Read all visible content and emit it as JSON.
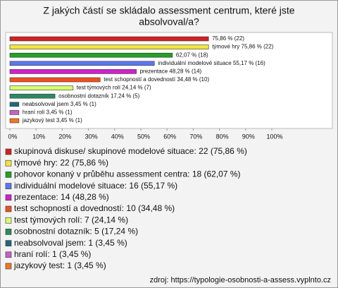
{
  "chart_data": {
    "type": "bar",
    "orientation": "horizontal",
    "title": [
      "Z jakých částí se skládalo assessment centrum, které jste",
      "absolvoval/a?"
    ],
    "values": [
      75.86,
      75.86,
      62.07,
      55.17,
      48.28,
      34.48,
      24.14,
      17.24,
      3.45,
      3.45,
      3.45
    ],
    "value_labels": [
      "75,86 % (22)",
      "týmové hry 75,86 % (22)",
      "62,07 % (18)",
      "individuální modelové situace 55,17 % (16)",
      "prezentace 48,28 % (14)",
      "test schopností a dovedností 34,48 % (10)",
      "test týmových rolí 24,14 % (7)",
      "osobnostní dotazník 17,24 % (5)",
      "neabsolvoval jsem 3,45 % (1)",
      "hraní rolí 3,45 % (1)",
      "jazykový test 3,45 % (1)"
    ],
    "colors": [
      "#d42020",
      "#f2e640",
      "#22a022",
      "#5a78f0",
      "#d020d0",
      "#f05020",
      "#d8ff70",
      "#2a8a60",
      "#206878",
      "#c860c8",
      "#f07820"
    ],
    "legend_labels": [
      "skupinová diskuse/ skupinové modelové situace: 22 (75,86 %)",
      "týmové hry: 22 (75,86 %)",
      "pohovor konaný v průběhu assessment centra: 18 (62,07 %)",
      "individuální modelové situace: 16 (55,17 %)",
      "prezentace: 14 (48,28 %)",
      "test schopností a dovedností: 10 (34,48 %)",
      "test týmových rolí: 7 (24,14 %)",
      "osobnostní dotazník: 5 (17,24 %)",
      "neabsolvoval jsem: 1 (3,45 %)",
      "hraní rolí: 1 (3,45 %)",
      "jazykový test: 1 (3,45 %)"
    ],
    "xlim": [
      0,
      100
    ],
    "xticks": [
      {
        "value": 0,
        "label": "0%"
      },
      {
        "value": 10,
        "label": "10%"
      },
      {
        "value": 20,
        "label": "20%"
      },
      {
        "value": 30,
        "label": "30%"
      },
      {
        "value": 40,
        "label": "40%"
      },
      {
        "value": 50,
        "label": "50%"
      },
      {
        "value": 60,
        "label": "60%"
      },
      {
        "value": 70,
        "label": "70%"
      },
      {
        "value": 80,
        "label": "80%"
      },
      {
        "value": 90,
        "label": "90%"
      },
      {
        "value": 100,
        "label": "100%"
      }
    ],
    "source": "zdroj: https://typologie-osobnosti-a-assess.vyplnto.cz"
  }
}
